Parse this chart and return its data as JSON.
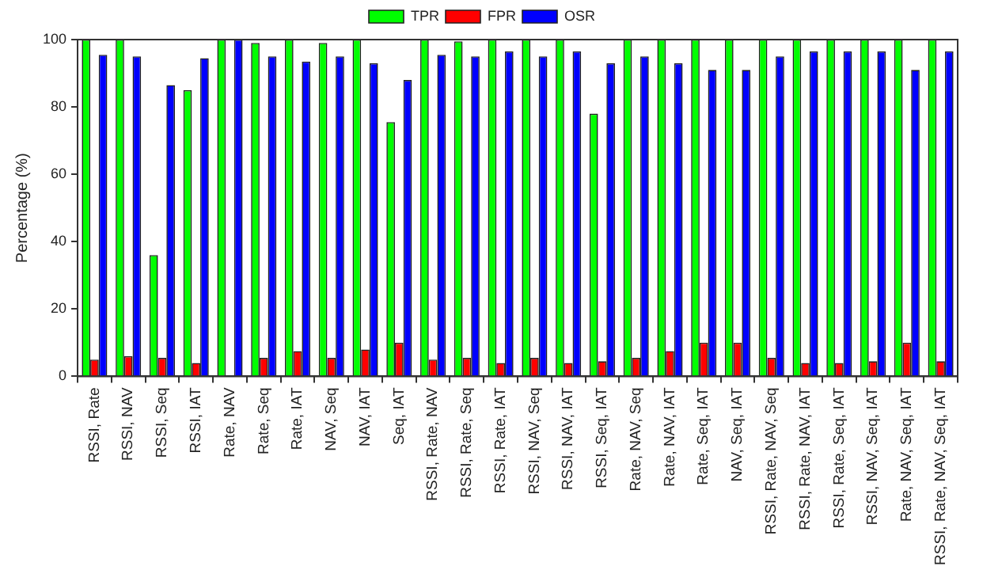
{
  "chart_data": {
    "type": "bar",
    "ylabel": "Percentage (%)",
    "categories": [
      "RSSI, Rate",
      "RSSI, NAV",
      "RSSI, Seq",
      "RSSI, IAT",
      "Rate, NAV",
      "Rate, Seq",
      "Rate, IAT",
      "NAV, Seq",
      "NAV, IAT",
      "Seq, IAT",
      "RSSI, Rate, NAV",
      "RSSI, Rate, Seq",
      "RSSI, Rate, IAT",
      "RSSI, NAV, Seq",
      "RSSI, NAV, IAT",
      "RSSI, Seq, IAT",
      "Rate, NAV, Seq",
      "Rate, NAV, IAT",
      "Rate, Seq, IAT",
      "NAV, Seq, IAT",
      "RSSI, Rate, NAV, Seq",
      "RSSI, Rate, NAV, IAT",
      "RSSI, Rate, Seq, IAT",
      "RSSI, NAV, Seq, IAT",
      "Rate, NAV, Seq, IAT",
      "RSSI, Rate, NAV, Seq, IAT"
    ],
    "series": [
      {
        "name": "TPR",
        "color": "#00ff00",
        "values": [
          100,
          100,
          36,
          85,
          100,
          99,
          100,
          99,
          100,
          75.5,
          100,
          99.5,
          100,
          100,
          100,
          78,
          100,
          100,
          100,
          100,
          100,
          100,
          100,
          100,
          100,
          100
        ]
      },
      {
        "name": "FPR",
        "color": "#ff0000",
        "values": [
          5,
          6,
          5.5,
          4,
          0,
          5.5,
          7.5,
          5.5,
          8,
          10,
          5,
          5.5,
          4,
          5.5,
          4,
          4.5,
          5.5,
          7.5,
          10,
          10,
          5.5,
          4,
          4,
          4.5,
          10,
          4.5
        ]
      },
      {
        "name": "OSR",
        "color": "#0000ff",
        "values": [
          95.5,
          95,
          86.5,
          94.5,
          100,
          95,
          93.5,
          95,
          93,
          88,
          95.5,
          95,
          96.5,
          95,
          96.5,
          93,
          95,
          93,
          91,
          91,
          95,
          96.5,
          96.5,
          96.5,
          91,
          96.5
        ]
      }
    ],
    "ylim": [
      0,
      100
    ],
    "yticks": [
      0,
      20,
      40,
      60,
      80,
      100
    ],
    "grid": false,
    "legend": "top"
  }
}
